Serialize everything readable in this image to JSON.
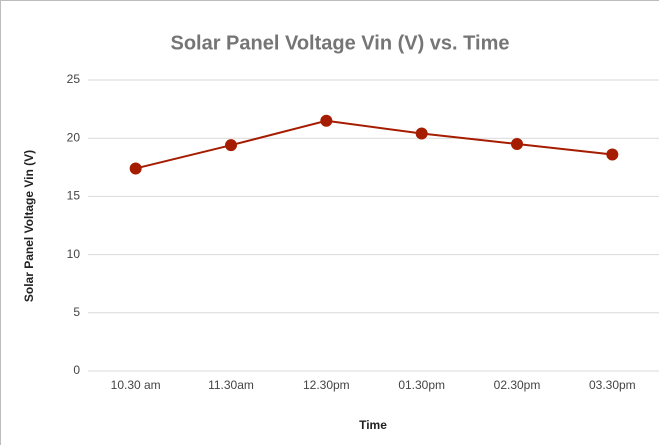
{
  "chart_data": {
    "type": "line",
    "title": "Solar Panel Voltage Vin (V) vs. Time",
    "x_label": "Time",
    "y_label": "Solar Panel Voltage Vin (V)",
    "categories": [
      "10.30 am",
      "11.30am",
      "12.30pm",
      "01.30pm",
      "02.30pm",
      "03.30pm"
    ],
    "series": [
      {
        "name": "Solar Panel Voltage Vin (V)",
        "color": "#a61c00",
        "values": [
          17.4,
          19.4,
          21.5,
          20.4,
          19.5,
          18.6
        ]
      }
    ],
    "ylim": [
      0,
      25
    ],
    "yticks": [
      0,
      5,
      10,
      15,
      20,
      25
    ],
    "grid": true
  }
}
